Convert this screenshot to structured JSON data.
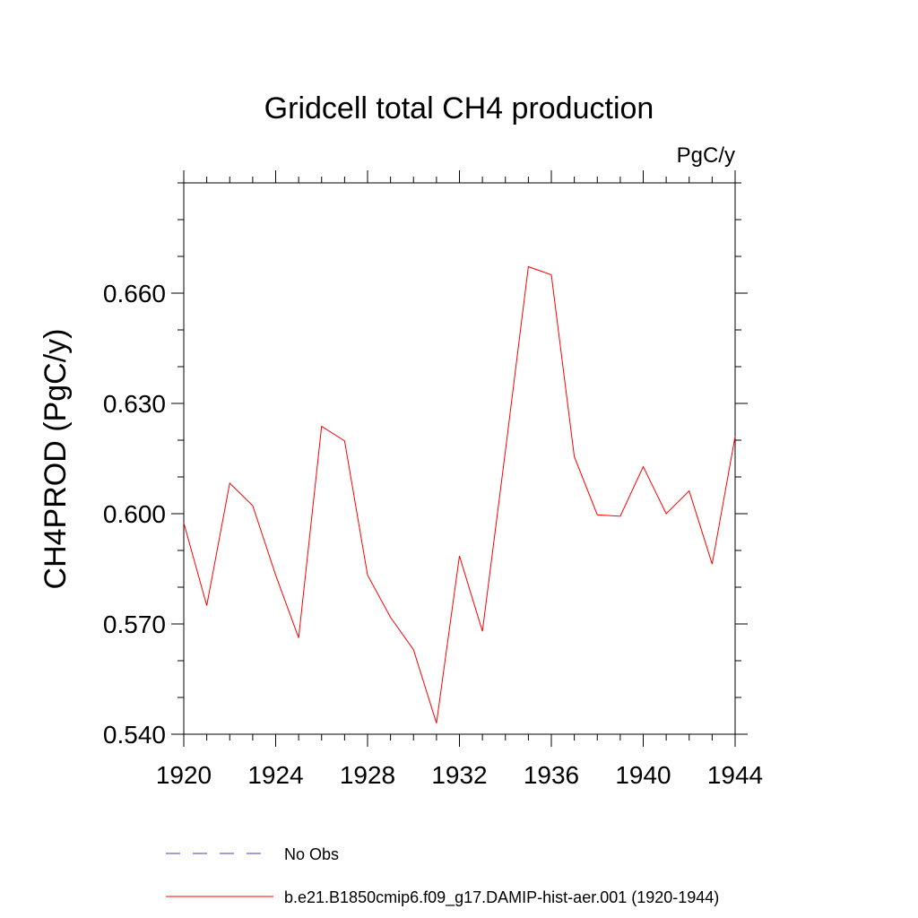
{
  "chart_data": {
    "type": "line",
    "title": "Gridcell total CH4 production",
    "units_label": "PgC/y",
    "xlabel": "",
    "ylabel": "CH4PROD  (PgC/y)",
    "xlim": [
      1920,
      1944
    ],
    "ylim": [
      0.54,
      0.69
    ],
    "x_ticks": [
      1920,
      1924,
      1928,
      1932,
      1936,
      1940,
      1944
    ],
    "x_tick_labels": [
      "1920",
      "1924",
      "1928",
      "1932",
      "1936",
      "1940",
      "1944"
    ],
    "y_ticks": [
      0.54,
      0.57,
      0.6,
      0.63,
      0.66
    ],
    "y_tick_labels": [
      "0.540",
      "0.570",
      "0.600",
      "0.630",
      "0.660"
    ],
    "grid": false,
    "legend_position": "bottom",
    "series": [
      {
        "name": "No Obs",
        "color": "#4a3fb5",
        "dash": "dashed",
        "x": [],
        "values": []
      },
      {
        "name": "b.e21.B1850cmip6.f09_g17.DAMIP-hist-aer.001 (1920-1944)",
        "color": "#ff0000",
        "dash": "solid",
        "x": [
          1920,
          1921,
          1922,
          1923,
          1924,
          1925,
          1926,
          1927,
          1928,
          1929,
          1930,
          1931,
          1932,
          1933,
          1934,
          1935,
          1936,
          1937,
          1938,
          1939,
          1940,
          1941,
          1942,
          1943,
          1944
        ],
        "values": [
          0.5975,
          0.575,
          0.6083,
          0.6022,
          0.5833,
          0.5662,
          0.6238,
          0.6198,
          0.5833,
          0.5718,
          0.563,
          0.543,
          0.5885,
          0.568,
          0.617,
          0.6672,
          0.665,
          0.6155,
          0.5997,
          0.5993,
          0.6128,
          0.6,
          0.6062,
          0.5863,
          0.621
        ]
      }
    ]
  }
}
